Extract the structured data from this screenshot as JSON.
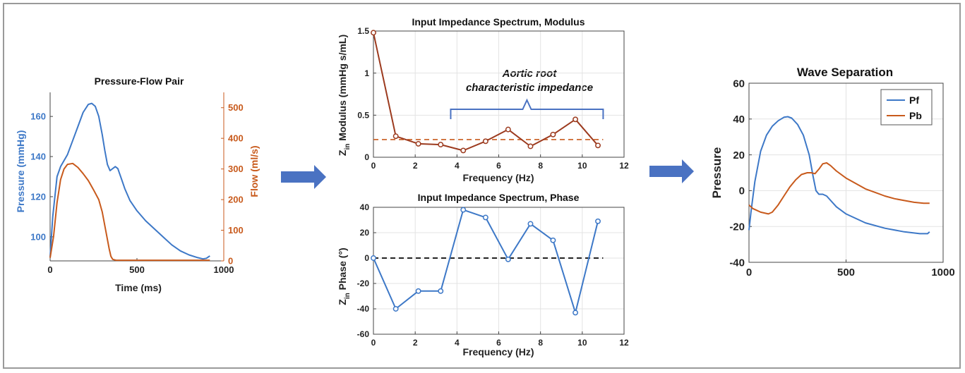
{
  "colors": {
    "blue": "#3d78c7",
    "orange": "#c85a1c",
    "dark_red": "#9c3a1e",
    "arrow": "#4a72c2",
    "brace": "#4a72c2",
    "dash_black": "#222222"
  },
  "icons": [
    "right-arrow-icon",
    "right-arrow-icon"
  ],
  "chart_data": [
    {
      "type": "line",
      "title": "Pressure-Flow Pair",
      "xlabel": "Time (ms)",
      "ylabel": "Pressure (mmHg)",
      "ylabel_right": "Flow (ml/s)",
      "xlim": [
        0,
        1000
      ],
      "ylim": [
        88,
        172
      ],
      "ylim_right": [
        0,
        550
      ],
      "xticks": [
        0,
        500,
        1000
      ],
      "yticks": [
        100,
        120,
        140,
        160
      ],
      "yticks_right": [
        0,
        100,
        200,
        300,
        400,
        500
      ],
      "grid": false,
      "series": [
        {
          "name": "Pressure",
          "axis": "left",
          "color": "#3d78c7",
          "x": [
            0,
            15,
            40,
            60,
            80,
            100,
            130,
            160,
            190,
            220,
            240,
            260,
            280,
            300,
            315,
            330,
            345,
            360,
            375,
            390,
            410,
            430,
            460,
            500,
            550,
            600,
            650,
            700,
            750,
            800,
            850,
            880,
            900,
            920
          ],
          "y": [
            90,
            110,
            130,
            135,
            138,
            141,
            148,
            155,
            162,
            166,
            166.5,
            165,
            160,
            151,
            143,
            136,
            133,
            134,
            135,
            134,
            129,
            124,
            118,
            113,
            108,
            104,
            100,
            96,
            93,
            91,
            89.6,
            89,
            89.3,
            90.5
          ]
        },
        {
          "name": "Flow",
          "axis": "right",
          "color": "#c85a1c",
          "x": [
            0,
            20,
            40,
            60,
            80,
            100,
            130,
            160,
            190,
            220,
            250,
            280,
            300,
            320,
            340,
            350,
            360,
            380,
            450,
            600,
            800,
            920
          ],
          "y": [
            10,
            80,
            190,
            265,
            300,
            315,
            318,
            305,
            285,
            262,
            232,
            200,
            160,
            100,
            40,
            15,
            5,
            2,
            2,
            2,
            2,
            2
          ]
        }
      ]
    },
    {
      "type": "line",
      "title": "Input Impedance Spectrum, Modulus",
      "xlabel": "Frequency (Hz)",
      "ylabel_sub": "in",
      "ylabel_z": "Z",
      "ylabel_rest": " Modulus (mmHg s/mL)",
      "xlim": [
        0,
        12
      ],
      "ylim": [
        0,
        1.5
      ],
      "xticks": [
        0,
        2,
        4,
        6,
        8,
        10,
        12
      ],
      "yticks": [
        0,
        0.5,
        1,
        1.5
      ],
      "ytick_labels": [
        "0",
        "0.5",
        "1",
        "1.5"
      ],
      "grid": true,
      "series": [
        {
          "color": "#9c3a1e",
          "x": [
            0,
            1.07,
            2.15,
            3.22,
            4.3,
            5.37,
            6.45,
            7.52,
            8.6,
            9.67,
            10.75
          ],
          "y": [
            1.48,
            0.25,
            0.16,
            0.15,
            0.08,
            0.19,
            0.33,
            0.13,
            0.27,
            0.45,
            0.14
          ]
        }
      ],
      "reference_line": {
        "y": 0.21,
        "x": [
          0,
          11
        ],
        "style": "dashed",
        "color": "#c85a1c"
      },
      "annotation": {
        "text_line1": "Aortic root",
        "text_line2": "characteristic impedance",
        "brace_x": [
          3.7,
          11.0
        ]
      }
    },
    {
      "type": "line",
      "title": "Input Impedance Spectrum, Phase",
      "xlabel": "Frequency (Hz)",
      "ylabel_z": "Z",
      "ylabel_sub": "in",
      "ylabel_rest": " Phase (°)",
      "xlim": [
        0,
        12
      ],
      "ylim": [
        -60,
        40
      ],
      "xticks": [
        0,
        2,
        4,
        6,
        8,
        10,
        12
      ],
      "yticks": [
        -60,
        -40,
        -20,
        0,
        20,
        40
      ],
      "grid": true,
      "series": [
        {
          "color": "#3d78c7",
          "x": [
            0,
            1.07,
            2.15,
            3.22,
            4.3,
            5.37,
            6.45,
            7.52,
            8.6,
            9.67,
            10.75
          ],
          "y": [
            0,
            -40,
            -26,
            -26,
            38,
            32,
            -1,
            27,
            14,
            -43,
            29
          ]
        }
      ],
      "reference_line": {
        "y": 0,
        "x": [
          0,
          11
        ],
        "style": "dashed",
        "color": "#222222"
      }
    },
    {
      "type": "line",
      "title": "Wave Separation",
      "xlabel": "",
      "ylabel": "Pressure",
      "xlim": [
        0,
        1000
      ],
      "ylim": [
        -40,
        60
      ],
      "xticks": [
        0,
        500,
        1000
      ],
      "yticks": [
        -40,
        -20,
        0,
        20,
        40,
        60
      ],
      "grid": true,
      "legend": "top-right",
      "series": [
        {
          "name": "Pf",
          "color": "#3d78c7",
          "x": [
            0,
            10,
            30,
            60,
            90,
            120,
            150,
            180,
            200,
            220,
            250,
            280,
            310,
            330,
            345,
            360,
            380,
            400,
            450,
            500,
            600,
            700,
            800,
            880,
            920,
            930
          ],
          "y": [
            -22,
            -12,
            5,
            22,
            31,
            36,
            39,
            41,
            41.3,
            40.5,
            37,
            31,
            20,
            8,
            0,
            -2,
            -2,
            -3,
            -9,
            -13,
            -18,
            -21,
            -23,
            -24,
            -24,
            -23
          ]
        },
        {
          "name": "Pb",
          "color": "#c85a1c",
          "x": [
            0,
            20,
            40,
            60,
            80,
            100,
            120,
            150,
            180,
            210,
            240,
            270,
            300,
            320,
            340,
            360,
            380,
            400,
            420,
            450,
            500,
            550,
            600,
            650,
            700,
            750,
            800,
            850,
            900,
            930
          ],
          "y": [
            -8,
            -10,
            -11,
            -12,
            -12.5,
            -13,
            -12,
            -8,
            -3,
            2,
            6,
            9,
            10,
            10,
            9.5,
            12,
            15,
            15.5,
            14,
            11,
            7,
            4,
            1,
            -1,
            -3,
            -4.5,
            -5.5,
            -6.5,
            -7,
            -7
          ]
        }
      ]
    }
  ]
}
